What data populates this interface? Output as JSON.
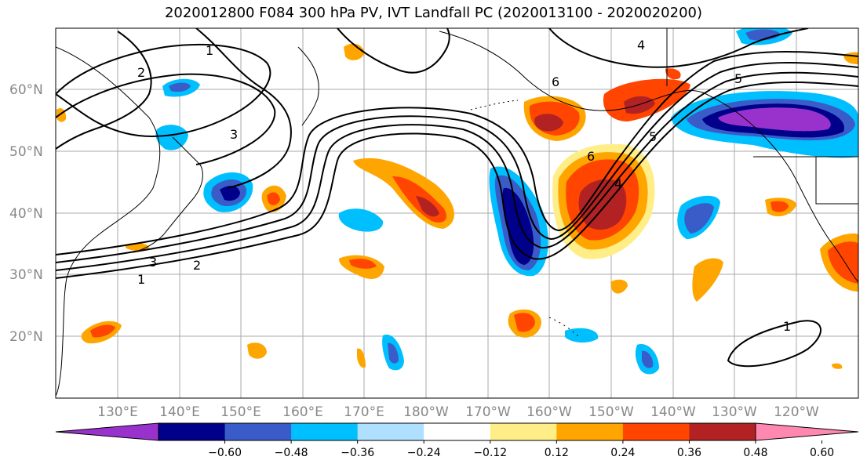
{
  "title": "2020012800 F084 300 hPa PV, IVT Landfall PC (2020013100 - 2020020200)",
  "map": {
    "lon_range": [
      120,
      250
    ],
    "lat_range": [
      10,
      70
    ],
    "lat_ticks": [
      "20°N",
      "30°N",
      "40°N",
      "50°N",
      "60°N"
    ],
    "lon_ticks": [
      "130°E",
      "140°E",
      "150°E",
      "160°E",
      "170°E",
      "180°W",
      "170°W",
      "160°W",
      "150°W",
      "140°W",
      "130°W",
      "120°W"
    ],
    "contour_labels": [
      "1",
      "2",
      "3",
      "4",
      "5",
      "6",
      "1",
      "2",
      "3",
      "4",
      "5",
      "6",
      "1"
    ]
  },
  "colorbar": {
    "colors": [
      "#9932cc",
      "#00008b",
      "#3a5cc8",
      "#00bfff",
      "#b0e0ff",
      "#ffffff",
      "#ffee88",
      "#ffa500",
      "#ff4500",
      "#b22222",
      "#ff88b0"
    ],
    "tick_labels": [
      "−0.60",
      "−0.48",
      "−0.36",
      "−0.24",
      "−0.12",
      "0.12",
      "0.24",
      "0.36",
      "0.48",
      "0.60"
    ]
  }
}
